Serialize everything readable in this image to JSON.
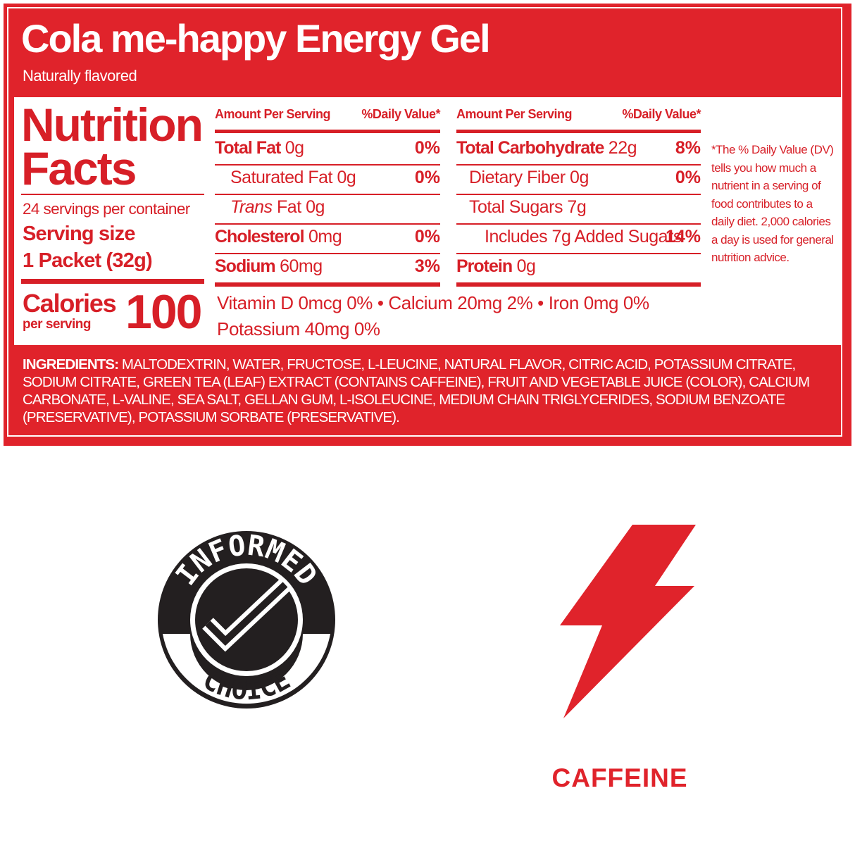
{
  "header": {
    "title": "Cola me-happy Energy Gel",
    "subtitle": "Naturally flavored"
  },
  "facts": {
    "title": "Nutrition Facts",
    "servings": "24 servings per container",
    "serving_size_label": "Serving size",
    "serving_size": "1 Packet (32g)",
    "calories_label": "Calories",
    "calories_sub": "per serving",
    "calories": "100"
  },
  "table": {
    "columns": [
      {
        "amount_header": "Amount Per Serving",
        "dv_header": "%Daily Value*",
        "rows": [
          {
            "name": "Total Fat",
            "amount": "0g",
            "dv": "0%"
          },
          {
            "name": "Saturated Fat",
            "amount": "0g",
            "dv": "0%"
          },
          {
            "name_italic": "Trans",
            "name": "Fat",
            "amount": "0g"
          },
          {
            "name": "Cholesterol",
            "amount": "0mg",
            "dv": "0%"
          },
          {
            "name": "Sodium",
            "amount": "60mg",
            "dv": "3%"
          }
        ]
      },
      {
        "amount_header": "Amount Per Serving",
        "dv_header": "%Daily Value*",
        "rows": [
          {
            "name": "Total Carbohydrate",
            "amount": "22g",
            "dv": "8%"
          },
          {
            "name": "Dietary Fiber",
            "amount": "0g",
            "dv": "0%"
          },
          {
            "name": "Total Sugars",
            "amount": "7g"
          },
          {
            "name": "Includes 7g Added Sugars",
            "dv": "14%"
          },
          {
            "name": "Protein",
            "amount": "0g"
          }
        ]
      }
    ],
    "vitamins": [
      "Vitamin D 0mcg 0% • Calcium 20mg 2% • Iron 0mg 0%",
      "Potassium 40mg 0%"
    ],
    "footnote": "*The % Daily Value (DV) tells you how much a nutrient in a serving of food contributes to a daily diet. 2,000 calories a day is used for general nutrition advice."
  },
  "ingredients": {
    "label": "INGREDIENTS:",
    "text": "MALTODEXTRIN, WATER, FRUCTOSE, L-LEUCINE, NATURAL FLAVOR, CITRIC ACID, POTASSIUM CITRATE, SODIUM CITRATE, GREEN TEA (LEAF) EXTRACT (CONTAINS CAFFEINE), FRUIT AND VEGETABLE JUICE (COLOR), CALCIUM CARBONATE, L-VALINE, SEA SALT, GELLAN GUM, L-ISOLEUCINE, MEDIUM CHAIN TRIGLYCERIDES, SODIUM BENZOATE (PRESERVATIVE), POTASSIUM SORBATE (PRESERVATIVE)."
  },
  "badges": {
    "informed_top": "INFORMED",
    "informed_bottom": "CHOICE",
    "caffeine": "CAFFEINE"
  }
}
